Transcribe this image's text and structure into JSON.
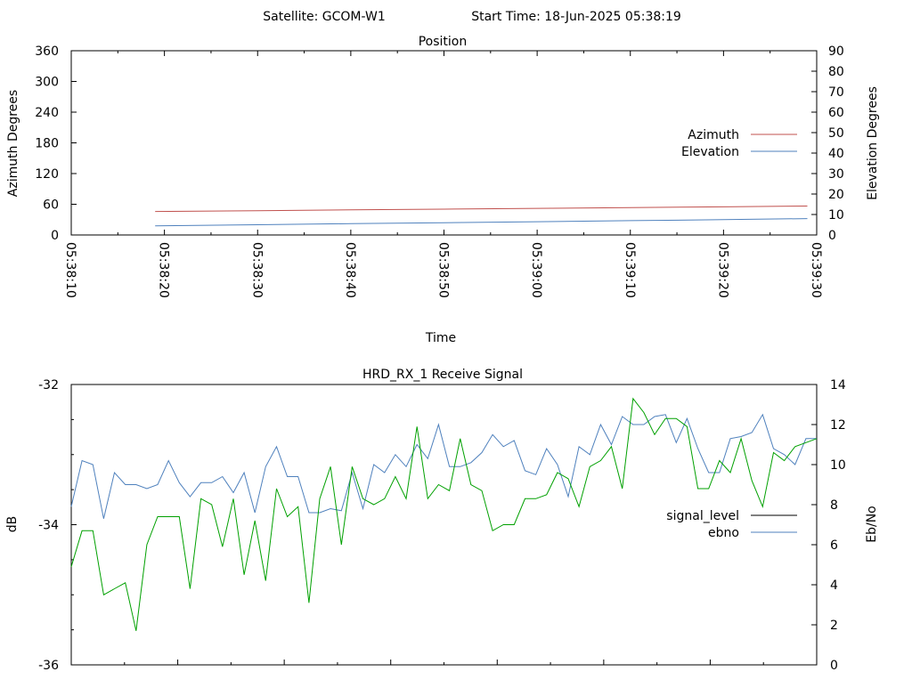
{
  "header": {
    "satellite": "Satellite: GCOM-W1",
    "start_time": "Start Time: 18-Jun-2025 05:38:19"
  },
  "colors": {
    "azimuth": "#c0504d",
    "elevation": "#4f81bd",
    "signal_level": "#00a000",
    "ebno": "#4f81bd",
    "legend_signal_level_sample": "#000000"
  },
  "chart_data": [
    {
      "type": "line",
      "title": "Position",
      "xlabel": "Time",
      "ylabel_left": "Azimuth Degrees",
      "ylabel_right": "Elevation Degrees",
      "xlim": [
        "05:38:10",
        "05:39:30"
      ],
      "x_ticks": [
        "05:38:10",
        "05:38:20",
        "05:38:30",
        "05:38:40",
        "05:38:50",
        "05:39:00",
        "05:39:10",
        "05:39:20",
        "05:39:30"
      ],
      "ylim_left": [
        0,
        360
      ],
      "y_ticks_left": [
        "0",
        "60",
        "120",
        "180",
        "240",
        "300",
        "360"
      ],
      "ylim_right": [
        0,
        90
      ],
      "y_ticks_right": [
        "0",
        "10",
        "20",
        "30",
        "40",
        "50",
        "60",
        "70",
        "80",
        "90"
      ],
      "legend_position": "right",
      "series": [
        {
          "name": "Azimuth",
          "axis": "left",
          "x": [
            "05:38:19",
            "05:38:30",
            "05:38:40",
            "05:38:50",
            "05:39:00",
            "05:39:10",
            "05:39:20",
            "05:39:29"
          ],
          "values": [
            46.0,
            47.5,
            49.0,
            50.5,
            52.0,
            53.5,
            55.0,
            56.5
          ]
        },
        {
          "name": "Elevation",
          "axis": "right",
          "x": [
            "05:38:19",
            "05:38:30",
            "05:38:40",
            "05:38:50",
            "05:39:00",
            "05:39:10",
            "05:39:20",
            "05:39:29"
          ],
          "values": [
            4.5,
            5.0,
            5.5,
            6.0,
            6.5,
            7.0,
            7.5,
            8.0
          ]
        }
      ]
    },
    {
      "type": "line",
      "title": "HRD_RX_1 Receive Signal",
      "ylabel_left": "dB",
      "ylabel_right": "Eb/No",
      "ylim_left": [
        -36,
        -32
      ],
      "y_ticks_left": [
        "-32",
        "-34",
        "-36"
      ],
      "ylim_right": [
        0,
        14
      ],
      "y_ticks_right": [
        "0",
        "2",
        "4",
        "6",
        "8",
        "10",
        "12",
        "14"
      ],
      "legend_position": "right",
      "x": [
        0,
        1,
        2,
        3,
        4,
        5,
        6,
        7,
        8,
        9,
        10,
        11,
        12,
        13,
        14,
        15,
        16,
        17,
        18,
        19,
        20,
        21,
        22,
        23,
        24,
        25,
        26,
        27,
        28,
        29,
        30,
        31,
        32,
        33,
        34,
        35,
        36,
        37,
        38,
        39,
        40,
        41,
        42,
        43,
        44,
        45,
        46,
        47,
        48,
        49,
        50,
        51,
        52,
        53,
        54,
        55,
        56,
        57,
        58,
        59,
        60,
        61,
        62,
        63,
        64,
        65,
        66,
        67,
        68,
        69
      ],
      "series": [
        {
          "name": "signal_level",
          "axis": "right",
          "values": [
            4.9,
            6.7,
            6.7,
            3.5,
            3.8,
            4.1,
            1.7,
            6.0,
            7.4,
            7.4,
            7.4,
            3.8,
            8.3,
            8.0,
            5.9,
            8.3,
            4.5,
            7.2,
            4.2,
            8.8,
            7.4,
            7.9,
            3.1,
            8.3,
            9.9,
            6.0,
            9.9,
            8.3,
            8.0,
            8.3,
            9.4,
            8.3,
            11.9,
            8.3,
            9.0,
            8.7,
            11.3,
            9.0,
            8.7,
            6.7,
            7.0,
            7.0,
            8.3,
            8.3,
            8.5,
            9.6,
            9.3,
            7.9,
            9.9,
            10.2,
            10.9,
            8.8,
            13.3,
            12.6,
            11.5,
            12.3,
            12.3,
            11.9,
            8.8,
            8.8,
            10.2,
            9.6,
            11.3,
            9.2,
            7.9,
            10.6,
            10.2,
            10.9,
            11.1,
            11.3
          ]
        },
        {
          "name": "ebno",
          "axis": "right",
          "values": [
            7.9,
            10.2,
            10.0,
            7.3,
            9.6,
            9.0,
            9.0,
            8.8,
            9.0,
            10.2,
            9.1,
            8.4,
            9.1,
            9.1,
            9.4,
            8.6,
            9.6,
            7.6,
            9.9,
            10.9,
            9.4,
            9.4,
            7.6,
            7.6,
            7.8,
            7.7,
            9.6,
            7.8,
            10.0,
            9.6,
            10.5,
            9.9,
            11.0,
            10.3,
            12.0,
            9.9,
            9.9,
            10.1,
            10.6,
            11.5,
            10.9,
            11.2,
            9.7,
            9.5,
            10.8,
            10.0,
            8.4,
            10.9,
            10.5,
            12.0,
            11.0,
            12.4,
            12.0,
            12.0,
            12.4,
            12.5,
            11.1,
            12.3,
            10.8,
            9.6,
            9.6,
            11.3,
            11.4,
            11.6,
            12.5,
            10.8,
            10.5,
            10.0,
            11.3,
            11.3
          ]
        }
      ]
    }
  ]
}
